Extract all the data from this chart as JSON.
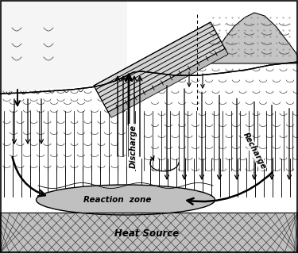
{
  "background_color": "#ffffff",
  "fig_width": 3.75,
  "fig_height": 3.19,
  "dpi": 100,
  "labels": {
    "discharge": "Discharge",
    "recharge": "Recharge",
    "reaction_zone": "Reaction  zone",
    "heat_source": "Heat Source"
  },
  "colors": {
    "white": "#ffffff",
    "ocean_gray": "#e0e0e0",
    "crust_white": "#ffffff",
    "hill_gray": "#c8c8c8",
    "ridge_light": "#e8e8e8",
    "ridge_dark": "#b0b0b0",
    "reaction_gray": "#c0c0c0",
    "heat_gray": "#b8b8b8",
    "black": "#000000"
  },
  "seafloor_x": [
    0,
    20,
    40,
    60,
    80,
    100,
    115,
    125,
    135,
    145,
    155,
    165,
    170,
    175,
    180,
    375
  ],
  "seafloor_y": [
    118,
    115,
    117,
    114,
    112,
    110,
    105,
    100,
    97,
    92,
    88,
    84,
    82,
    82,
    84,
    70
  ]
}
